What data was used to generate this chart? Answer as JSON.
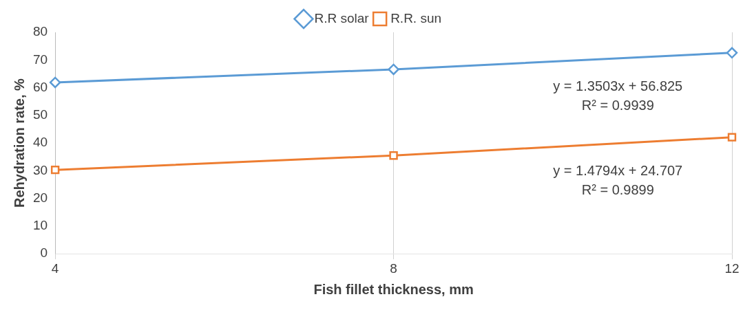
{
  "chart_data": {
    "type": "line",
    "xlabel": "Fish fillet thickness, mm",
    "ylabel": "Rehydration rate, %",
    "categories": [
      "4",
      "8",
      "12"
    ],
    "series": [
      {
        "name": "R.R solar",
        "color": "#5b9bd5",
        "marker": "diamond",
        "values": [
          61.9,
          66.6,
          72.6
        ]
      },
      {
        "name": "R.R. sun",
        "color": "#ed7d31",
        "marker": "square",
        "values": [
          30.3,
          35.5,
          42.1
        ]
      }
    ],
    "ylim": [
      0,
      80
    ],
    "yticks": [
      0,
      10,
      20,
      30,
      40,
      50,
      60,
      70,
      80
    ],
    "grid": "x",
    "legend": "top",
    "annotations": [
      "y = 1.3503x + 56.825\nR² = 0.9939",
      "y = 1.4794x + 24.707\nR² = 0.9899"
    ]
  }
}
